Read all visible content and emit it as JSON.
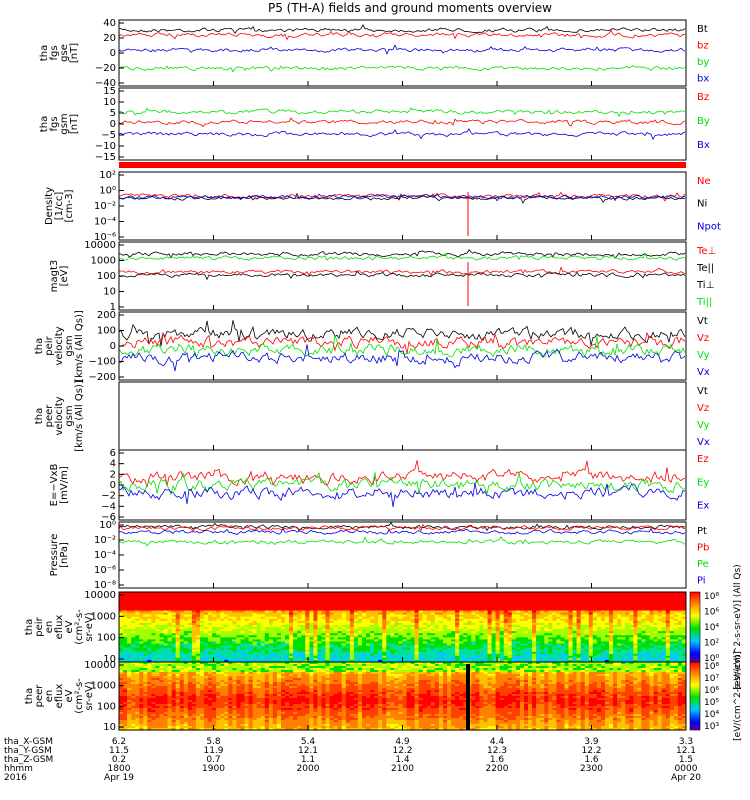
{
  "title": "P5 (TH-A) fields and ground moments overview",
  "colors": {
    "black": "#000000",
    "red": "#ff0000",
    "green": "#00e000",
    "blue": "#0000e0"
  },
  "chart_data": [
    {
      "type": "line",
      "id": "fgs_gse",
      "ylabel": [
        "tha",
        "fgs",
        "gse",
        "[nT]"
      ],
      "yticks": [
        "40",
        "20",
        "0",
        "−20",
        "−40"
      ],
      "series": [
        {
          "name": "Bt",
          "color": "black",
          "level": 33
        },
        {
          "name": "bz",
          "color": "red",
          "level": 28
        },
        {
          "name": "by",
          "color": "green",
          "level": -13
        },
        {
          "name": "bx",
          "color": "blue",
          "level": 5
        }
      ]
    },
    {
      "type": "line",
      "id": "fgs_gsm",
      "ylabel": [
        "tha",
        "fgs",
        "gsm",
        "[nT]"
      ],
      "yticks": [
        "15",
        "10",
        "5",
        "0",
        "−5",
        "−10",
        "−15"
      ],
      "series": [
        {
          "name": "Bz",
          "color": "red",
          "level": 0
        },
        {
          "name": "By",
          "color": "green",
          "level": 5
        },
        {
          "name": "Bx",
          "color": "blue",
          "level": -8
        }
      ]
    },
    {
      "type": "line",
      "id": "density",
      "ylabel": [
        "Density",
        "[1/cc]",
        "[cm-3]"
      ],
      "yticks": [
        "10²",
        "10⁰",
        "10⁻²",
        "10⁻⁴",
        "10⁻⁶"
      ],
      "series": [
        {
          "name": "Ne",
          "color": "red"
        },
        {
          "name": "Ni",
          "color": "black"
        },
        {
          "name": "Npot",
          "color": "blue"
        }
      ]
    },
    {
      "type": "line",
      "id": "temperature",
      "ylabel": [
        "magt3",
        "[eV]"
      ],
      "yticks": [
        "10000",
        "1000",
        "100",
        "10",
        "1"
      ],
      "series": [
        {
          "name": "Te⊥",
          "color": "red"
        },
        {
          "name": "Te||",
          "color": "black"
        },
        {
          "name": "Ti⊥",
          "color": "black"
        },
        {
          "name": "Ti||",
          "color": "green"
        }
      ]
    },
    {
      "type": "line",
      "id": "peir_velocity",
      "ylabel": [
        "tha",
        "peir",
        "velocity",
        "gsm",
        "[km/s (All Qs)]"
      ],
      "yticks": [
        "200",
        "100",
        "0",
        "−100",
        "−200"
      ],
      "series": [
        {
          "name": "Vt",
          "color": "black"
        },
        {
          "name": "Vz",
          "color": "red"
        },
        {
          "name": "Vy",
          "color": "green"
        },
        {
          "name": "Vx",
          "color": "blue"
        }
      ]
    },
    {
      "type": "line",
      "id": "peer_velocity",
      "ylabel": [
        "tha",
        "peer",
        "velocity",
        "gsm",
        "[km/s (All Qs)]"
      ],
      "yticks": [],
      "series": [
        {
          "name": "Vt",
          "color": "black"
        },
        {
          "name": "Vz",
          "color": "red"
        },
        {
          "name": "Vy",
          "color": "green"
        },
        {
          "name": "Vx",
          "color": "blue"
        }
      ]
    },
    {
      "type": "line",
      "id": "efield",
      "ylabel": [
        "E=−VxB",
        "[mV/m]"
      ],
      "yticks": [
        "6",
        "4",
        "2",
        "0",
        "−2",
        "−4",
        "−6"
      ],
      "series": [
        {
          "name": "Ez",
          "color": "red"
        },
        {
          "name": "Ey",
          "color": "green"
        },
        {
          "name": "Ex",
          "color": "blue"
        }
      ]
    },
    {
      "type": "line",
      "id": "pressure",
      "ylabel": [
        "Pressure",
        "[nPa]"
      ],
      "yticks": [
        "10⁰",
        "10⁻²",
        "10⁻⁴",
        "10⁻⁶",
        "10⁻⁸"
      ],
      "series": [
        {
          "name": "Pt",
          "color": "black"
        },
        {
          "name": "Pb",
          "color": "red"
        },
        {
          "name": "Pe",
          "color": "green"
        },
        {
          "name": "Pi",
          "color": "blue"
        }
      ]
    },
    {
      "type": "heatmap",
      "id": "peir_spec",
      "ylabel": [
        "tha",
        "peir",
        "en",
        "eflux",
        "eV",
        "(cm²-s-",
        "sr-eV)"
      ],
      "yticks": [
        "10000",
        "1000",
        "100",
        "10"
      ],
      "colorbar": {
        "ticks": [
          "10⁸",
          "10⁶",
          "10⁴",
          "10²",
          "10⁰"
        ],
        "label": "[eV/(cm^2-s-sr-eV)] (All Qs)"
      }
    },
    {
      "type": "heatmap",
      "id": "peer_spec",
      "ylabel": [
        "tha",
        "peer",
        "en",
        "eflux",
        "eV",
        "(cm²-s-",
        "sr-eV)"
      ],
      "yticks": [
        "10000",
        "1000",
        "100",
        "10"
      ],
      "colorbar": {
        "ticks": [
          "10⁸",
          "10⁷",
          "10⁶",
          "10⁵",
          "10⁴",
          "10³"
        ],
        "label": "[eV/(cm^2-s-sr-eV)]"
      }
    }
  ],
  "xaxis": {
    "rows": [
      {
        "label": "tha_X-GSM",
        "values": [
          "6.2",
          "5.8",
          "5.4",
          "4.9",
          "4.4",
          "3.9",
          "3.3"
        ]
      },
      {
        "label": "tha_Y-GSM",
        "values": [
          "11.5",
          "11.9",
          "12.1",
          "12.2",
          "12.3",
          "12.2",
          "12.1"
        ]
      },
      {
        "label": "tha_Z-GSM",
        "values": [
          "0.2",
          "0.7",
          "1.1",
          "1.4",
          "1.6",
          "1.6",
          "1.5"
        ]
      },
      {
        "label": "hhmm",
        "values": [
          "1800",
          "1900",
          "2000",
          "2100",
          "2200",
          "2300",
          "0000"
        ]
      }
    ],
    "year": "2016",
    "dates": [
      {
        "at": 0,
        "text": "Apr 19"
      },
      {
        "at": 6,
        "text": "Apr 20"
      }
    ]
  }
}
